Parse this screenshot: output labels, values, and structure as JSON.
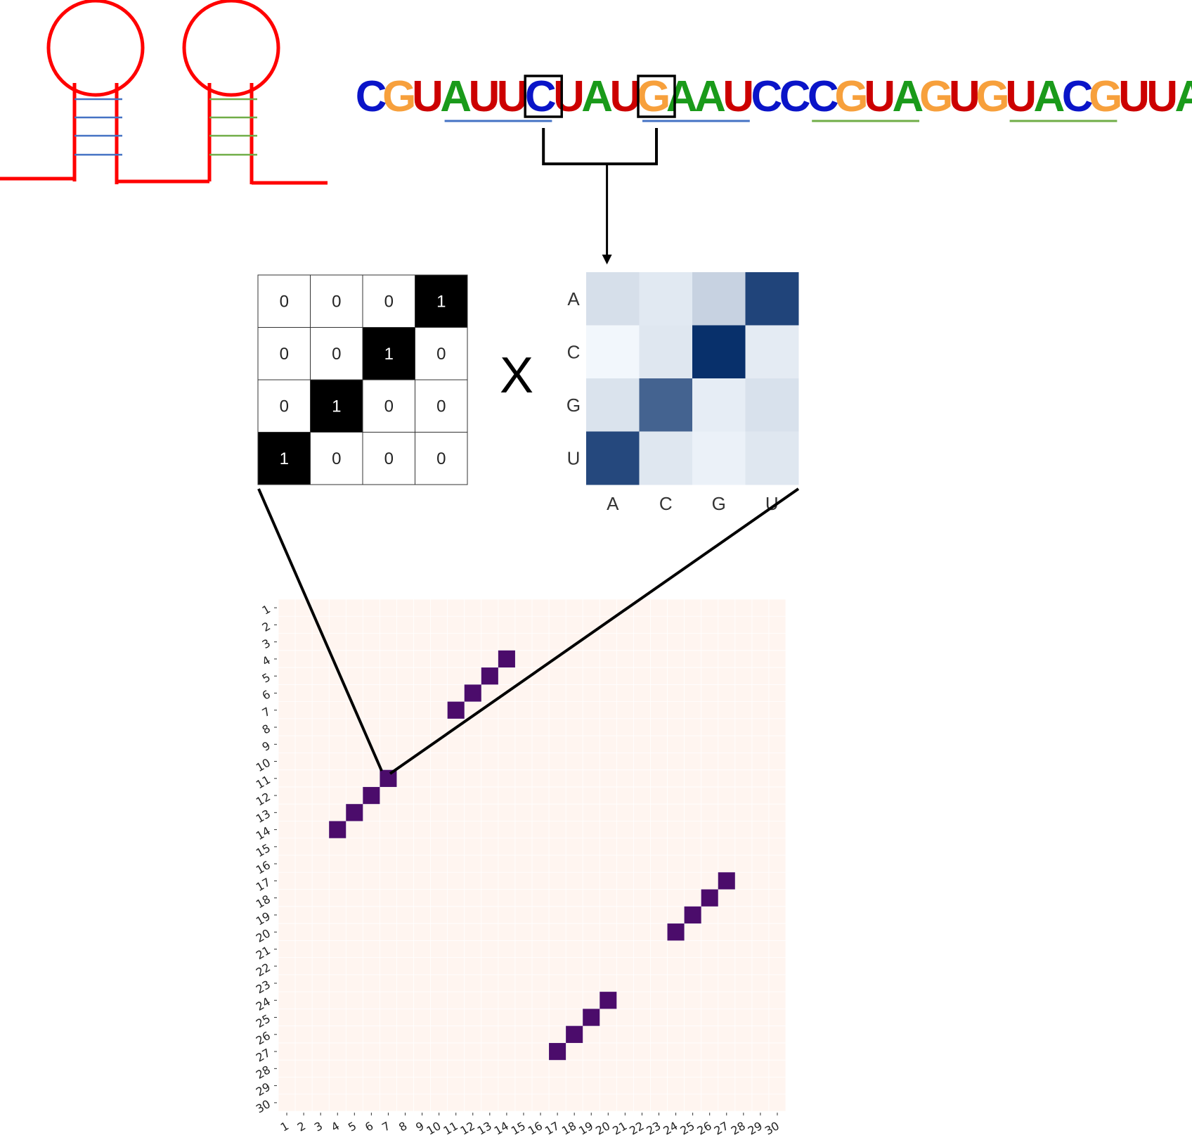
{
  "sequence": {
    "letters": [
      "C",
      "G",
      "U",
      "A",
      "U",
      "U",
      "C",
      "U",
      "A",
      "U",
      "G",
      "A",
      "A",
      "U",
      "C",
      "C",
      "C",
      "G",
      "U",
      "A",
      "G",
      "U",
      "G",
      "U",
      "A",
      "C",
      "G",
      "U",
      "U",
      "A"
    ],
    "colors": {
      "A": "#1a9a1a",
      "C": "#0a14c8",
      "G": "#f7a03c",
      "U": "#cc0000"
    },
    "boxed_indices": [
      6,
      10
    ],
    "underlines": [
      {
        "start": 3,
        "end": 6,
        "color": "#4472c4"
      },
      {
        "start": 10,
        "end": 13,
        "color": "#4472c4"
      },
      {
        "start": 16,
        "end": 19,
        "color": "#70ad47"
      },
      {
        "start": 23,
        "end": 26,
        "color": "#70ad47"
      }
    ]
  },
  "hairpins": {
    "backbone_color": "#ff0000",
    "pair_colors": [
      "#4472c4",
      "#70ad47"
    ]
  },
  "flip_matrix": {
    "values": [
      [
        0,
        0,
        0,
        1
      ],
      [
        0,
        0,
        1,
        0
      ],
      [
        0,
        1,
        0,
        0
      ],
      [
        1,
        0,
        0,
        0
      ]
    ],
    "labels": [
      [
        "0",
        "0",
        "0",
        "1"
      ],
      [
        "0",
        "0",
        "1",
        "0"
      ],
      [
        "0",
        "1",
        "0",
        "0"
      ],
      [
        "1",
        "0",
        "0",
        "0"
      ]
    ]
  },
  "operator": "X",
  "pair_heatmap": {
    "row_labels": [
      "A",
      "C",
      "G",
      "U"
    ],
    "col_labels": [
      "A",
      "C",
      "G",
      "U"
    ],
    "intensity": [
      [
        0.14,
        0.09,
        0.2,
        0.9
      ],
      [
        0.02,
        0.1,
        1.0,
        0.08
      ],
      [
        0.12,
        0.75,
        0.07,
        0.13
      ],
      [
        0.88,
        0.1,
        0.05,
        0.1
      ]
    ]
  },
  "chart_data": {
    "type": "heatmap",
    "title": "",
    "xlabel": "",
    "ylabel": "",
    "x_ticks": [
      "1",
      "2",
      "3",
      "4",
      "5",
      "6",
      "7",
      "8",
      "9",
      "10",
      "11",
      "12",
      "13",
      "14",
      "15",
      "16",
      "17",
      "18",
      "19",
      "20",
      "21",
      "22",
      "23",
      "24",
      "25",
      "26",
      "27",
      "28",
      "29",
      "30"
    ],
    "y_ticks": [
      "1",
      "2",
      "3",
      "4",
      "5",
      "6",
      "7",
      "8",
      "9",
      "10",
      "11",
      "12",
      "13",
      "14",
      "15",
      "16",
      "17",
      "18",
      "19",
      "20",
      "21",
      "22",
      "23",
      "24",
      "25",
      "26",
      "27",
      "28",
      "29",
      "30"
    ],
    "background_color": "#fff5f0",
    "mark_color": "#4b0c6b",
    "pairs": [
      {
        "x": 14,
        "y": 4
      },
      {
        "x": 13,
        "y": 5
      },
      {
        "x": 12,
        "y": 6
      },
      {
        "x": 11,
        "y": 7
      },
      {
        "x": 7,
        "y": 11
      },
      {
        "x": 6,
        "y": 12
      },
      {
        "x": 5,
        "y": 13
      },
      {
        "x": 4,
        "y": 14
      },
      {
        "x": 27,
        "y": 17
      },
      {
        "x": 26,
        "y": 18
      },
      {
        "x": 25,
        "y": 19
      },
      {
        "x": 24,
        "y": 20
      },
      {
        "x": 20,
        "y": 24
      },
      {
        "x": 19,
        "y": 25
      },
      {
        "x": 18,
        "y": 26
      },
      {
        "x": 17,
        "y": 27
      }
    ]
  }
}
